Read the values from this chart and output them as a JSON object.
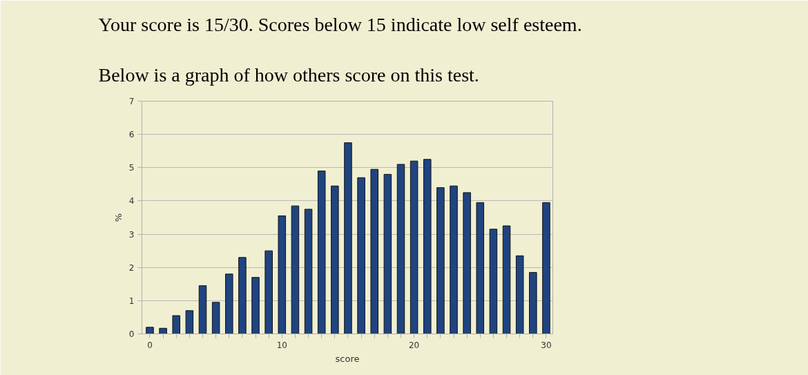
{
  "chart_data": {
    "type": "bar",
    "title": "Your score is 15/30. Scores below 15 indicate low self esteem.",
    "subtitle": "Below is a graph of how others score on this test.",
    "xlabel": "score",
    "ylabel": "%",
    "x": [
      0,
      1,
      2,
      3,
      4,
      5,
      6,
      7,
      8,
      9,
      10,
      11,
      12,
      13,
      14,
      15,
      16,
      17,
      18,
      19,
      20,
      21,
      22,
      23,
      24,
      25,
      26,
      27,
      28,
      29,
      30
    ],
    "values": [
      0.2,
      0.17,
      0.55,
      0.7,
      1.45,
      0.95,
      1.8,
      2.3,
      1.7,
      2.5,
      3.55,
      3.85,
      3.75,
      4.9,
      4.45,
      5.75,
      4.7,
      4.95,
      4.8,
      5.1,
      5.2,
      5.25,
      4.4,
      4.45,
      4.25,
      3.95,
      3.15,
      3.25,
      2.35,
      1.85,
      3.95
    ],
    "color": "#1f4480",
    "xlim": [
      -0.6,
      30.5
    ],
    "ylim": [
      0,
      7
    ],
    "xticks": [
      0,
      {
        "value": 1,
        "label": null
      },
      {
        "value": 2,
        "label": null
      },
      {
        "value": 3,
        "label": null
      },
      {
        "value": 4,
        "label": null
      },
      {
        "value": 5,
        "label": null
      },
      {
        "value": 6,
        "label": null
      },
      {
        "value": 7,
        "label": null
      },
      {
        "value": 8,
        "label": null
      },
      {
        "value": 9,
        "label": null
      },
      10,
      {
        "value": 11,
        "label": null
      },
      {
        "value": 12,
        "label": null
      },
      {
        "value": 13,
        "label": null
      },
      {
        "value": 14,
        "label": null
      },
      {
        "value": 15,
        "label": null
      },
      {
        "value": 16,
        "label": null
      },
      {
        "value": 17,
        "label": null
      },
      {
        "value": 18,
        "label": null
      },
      {
        "value": 19,
        "label": null
      },
      20,
      {
        "value": 21,
        "label": null
      },
      {
        "value": 22,
        "label": null
      },
      {
        "value": 23,
        "label": null
      },
      {
        "value": 24,
        "label": null
      },
      {
        "value": 25,
        "label": null
      },
      {
        "value": 26,
        "label": null
      },
      {
        "value": 27,
        "label": null
      },
      {
        "value": 28,
        "label": null
      },
      {
        "value": 29,
        "label": null
      },
      30
    ],
    "yticks": [
      0,
      1,
      2,
      3,
      4,
      5,
      6,
      7
    ],
    "grid": "y"
  }
}
